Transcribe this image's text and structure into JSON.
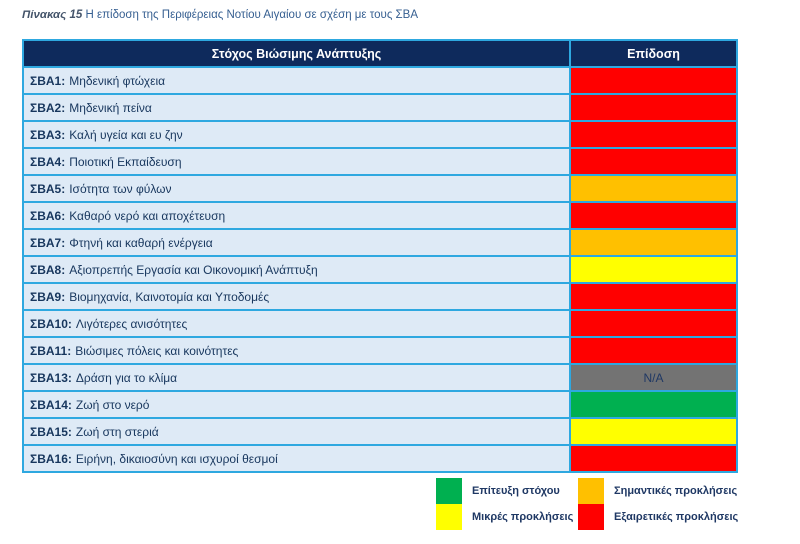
{
  "caption": {
    "label": "Πίνακας 15",
    "text": "Η επίδοση της Περιφέρειας Νοτίου Αιγαίου σε σχέση με τους ΣΒΑ"
  },
  "table": {
    "headers": {
      "goal": "Στόχος Βιώσιμης Ανάπτυξης",
      "performance": "Επίδοση"
    },
    "rows": [
      {
        "code": "ΣΒΑ1",
        "label": "Μηδενική φτώχεια",
        "status": "red",
        "value": ""
      },
      {
        "code": "ΣΒΑ2",
        "label": "Μηδενική πείνα",
        "status": "red",
        "value": ""
      },
      {
        "code": "ΣΒΑ3",
        "label": "Καλή υγεία και ευ ζην",
        "status": "red",
        "value": ""
      },
      {
        "code": "ΣΒΑ4",
        "label": "Ποιοτική Εκπαίδευση",
        "status": "red",
        "value": ""
      },
      {
        "code": "ΣΒΑ5",
        "label": "Ισότητα των φύλων",
        "status": "orange",
        "value": ""
      },
      {
        "code": "ΣΒΑ6",
        "label": "Καθαρό νερό και αποχέτευση",
        "status": "red",
        "value": ""
      },
      {
        "code": "ΣΒΑ7",
        "label": "Φτηνή και καθαρή ενέργεια",
        "status": "orange",
        "value": ""
      },
      {
        "code": "ΣΒΑ8",
        "label": "Αξιοπρεπής Εργασία και Οικονομική Ανάπτυξη",
        "status": "yellow",
        "value": ""
      },
      {
        "code": "ΣΒΑ9",
        "label": "Βιομηχανία, Καινοτομία και Υποδομές",
        "status": "red",
        "value": ""
      },
      {
        "code": "ΣΒΑ10",
        "label": "Λιγότερες ανισότητες",
        "status": "red",
        "value": ""
      },
      {
        "code": "ΣΒΑ11",
        "label": "Βιώσιμες πόλεις και κοινότητες",
        "status": "red",
        "value": ""
      },
      {
        "code": "ΣΒΑ13",
        "label": "Δράση για το κλίμα",
        "status": "na",
        "value": "N/A"
      },
      {
        "code": "ΣΒΑ14",
        "label": "Ζωή στο νερό",
        "status": "green",
        "value": ""
      },
      {
        "code": "ΣΒΑ15",
        "label": "Ζωή στη στεριά",
        "status": "yellow",
        "value": ""
      },
      {
        "code": "ΣΒΑ16",
        "label": "Ειρήνη, δικαιοσύνη και ισχυροί θεσμοί",
        "status": "red",
        "value": ""
      }
    ]
  },
  "legend": {
    "items": [
      {
        "label": "Επίτευξη στόχου",
        "status": "green"
      },
      {
        "label": "Μικρές προκλήσεις",
        "status": "yellow"
      },
      {
        "label": "Σημαντικές προκλήσεις",
        "status": "orange"
      },
      {
        "label": "Εξαιρετικές προκλήσεις",
        "status": "red"
      }
    ]
  },
  "colors": {
    "red": "#FF0000",
    "orange": "#FFC000",
    "yellow": "#FFFF00",
    "green": "#00B050",
    "na": "#737373",
    "header_bg": "#0E2A5C",
    "row_bg": "#DEEAF6",
    "border": "#2EA8E0",
    "row_text": "#17365D"
  }
}
